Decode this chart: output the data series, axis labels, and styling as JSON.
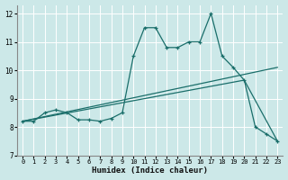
{
  "xlabel": "Humidex (Indice chaleur)",
  "ylabel": "",
  "xlim": [
    -0.5,
    23.5
  ],
  "ylim": [
    7,
    12.3
  ],
  "xticks": [
    0,
    1,
    2,
    3,
    4,
    5,
    6,
    7,
    8,
    9,
    10,
    11,
    12,
    13,
    14,
    15,
    16,
    17,
    18,
    19,
    20,
    21,
    22,
    23
  ],
  "yticks": [
    7,
    8,
    9,
    10,
    11,
    12
  ],
  "background_color": "#cce8e8",
  "grid_color": "#ffffff",
  "line_color": "#1a6e6a",
  "line1_x": [
    0,
    1,
    2,
    3,
    4,
    5,
    6,
    7,
    8,
    9,
    10,
    11,
    12,
    13,
    14,
    15,
    16,
    17,
    18,
    19,
    20,
    21,
    22,
    23
  ],
  "line1_y": [
    8.2,
    8.2,
    8.5,
    8.6,
    8.5,
    8.25,
    8.25,
    8.2,
    8.3,
    8.5,
    10.5,
    11.5,
    11.5,
    10.8,
    10.8,
    11.0,
    11.0,
    12.0,
    10.5,
    10.1,
    9.65,
    8.0,
    7.75,
    7.5
  ],
  "line2_x": [
    0,
    23
  ],
  "line2_y": [
    8.2,
    10.1
  ],
  "line3_x": [
    0,
    20,
    23
  ],
  "line3_y": [
    8.2,
    9.65,
    7.5
  ]
}
